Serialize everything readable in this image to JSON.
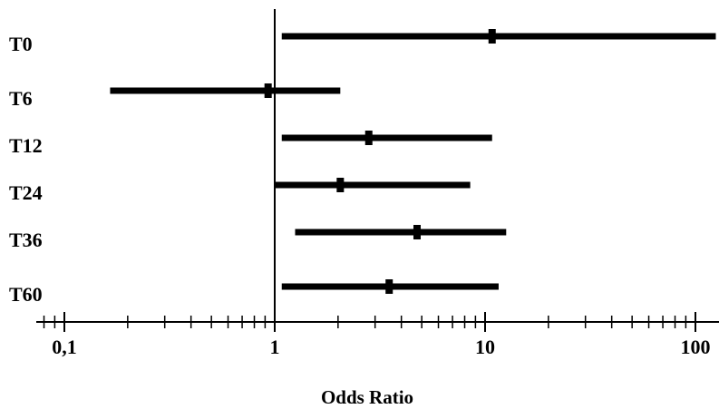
{
  "chart_data": {
    "type": "forest",
    "xlabel": "Odds Ratio",
    "xscale": "log",
    "xlim": [
      0.07,
      125
    ],
    "reference_line": 1,
    "x_tick_labels": [
      {
        "value": 0.1,
        "label": "0,1"
      },
      {
        "value": 1,
        "label": "1"
      },
      {
        "value": 10,
        "label": "10"
      },
      {
        "value": 100,
        "label": "100"
      }
    ],
    "categories": [
      "T0",
      "T6",
      "T12",
      "T24",
      "T36",
      "T60"
    ],
    "estimates": [
      10.8,
      0.93,
      2.8,
      2.05,
      4.75,
      3.5
    ],
    "ci_lower": [
      1.08,
      0.165,
      1.08,
      1.0,
      1.25,
      1.08
    ],
    "ci_upper": [
      125,
      2.05,
      10.8,
      8.5,
      12.6,
      11.6
    ],
    "color": "#000000"
  }
}
